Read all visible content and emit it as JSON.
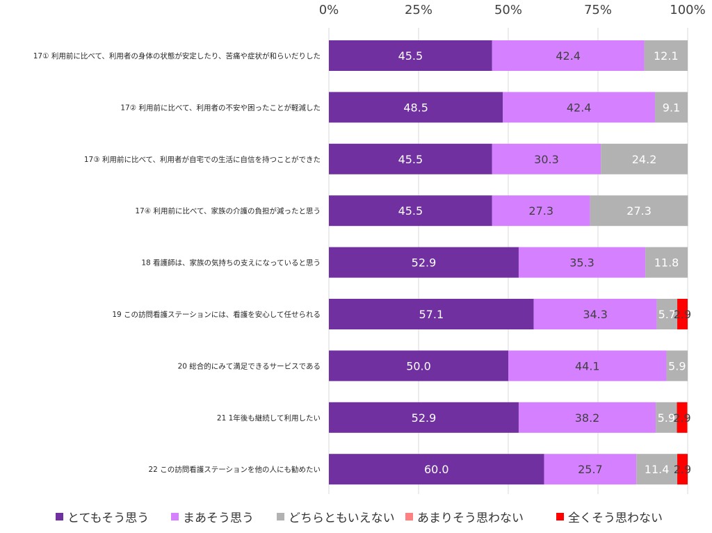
{
  "chart_data": {
    "type": "bar",
    "orientation": "horizontal",
    "stacked": true,
    "percent_scale": true,
    "xlim": [
      0,
      100
    ],
    "x_ticks": [
      "0%",
      "25%",
      "50%",
      "75%",
      "100%"
    ],
    "x_tick_values": [
      0,
      25,
      50,
      75,
      100
    ],
    "grid": true,
    "legend_position": "bottom",
    "categories": [
      "17① 利用前に比べて、利用者の身体の状態が安定したり、苦痛や症状が和らいだりした",
      "17② 利用前に比べて、利用者の不安や困ったことが軽減した",
      "17③ 利用前に比べて、利用者が自宅での生活に自信を持つことができた",
      "17④ 利用前に比べて、家族の介護の負担が減ったと思う",
      "18 看護師は、家族の気持ちの支えになっていると思う",
      "19 この訪問看護ステーションには、看護を安心して任せられる",
      "20 総合的にみて満足できるサービスである",
      "21 1年後も継続して利用したい",
      "22 この訪問看護ステーションを他の人にも勧めたい"
    ],
    "series": [
      {
        "name": "とてもそう思う",
        "color": "#7030a0",
        "label_color": "#ffffff",
        "values": [
          45.5,
          48.5,
          45.5,
          45.5,
          52.9,
          57.1,
          50.0,
          52.9,
          60.0
        ]
      },
      {
        "name": "まあそう思う",
        "color": "#d580ff",
        "label_color": "#404040",
        "values": [
          42.4,
          42.4,
          30.3,
          27.3,
          35.3,
          34.3,
          44.1,
          38.2,
          25.7
        ]
      },
      {
        "name": "どちらともいえない",
        "color": "#b2b2b2",
        "label_color": "#ffffff",
        "values": [
          12.1,
          9.1,
          24.2,
          27.3,
          11.8,
          5.7,
          5.9,
          5.9,
          11.4
        ]
      },
      {
        "name": "あまりそう思わない",
        "color": "#ff8080",
        "label_color": "#404040",
        "values": [
          0,
          0,
          0,
          0,
          0,
          0,
          0,
          0,
          0
        ]
      },
      {
        "name": "全くそう思わない",
        "color": "#ff0000",
        "label_color": "#404040",
        "values": [
          0,
          0,
          0,
          0,
          0,
          2.9,
          0,
          2.9,
          2.9
        ]
      }
    ]
  }
}
